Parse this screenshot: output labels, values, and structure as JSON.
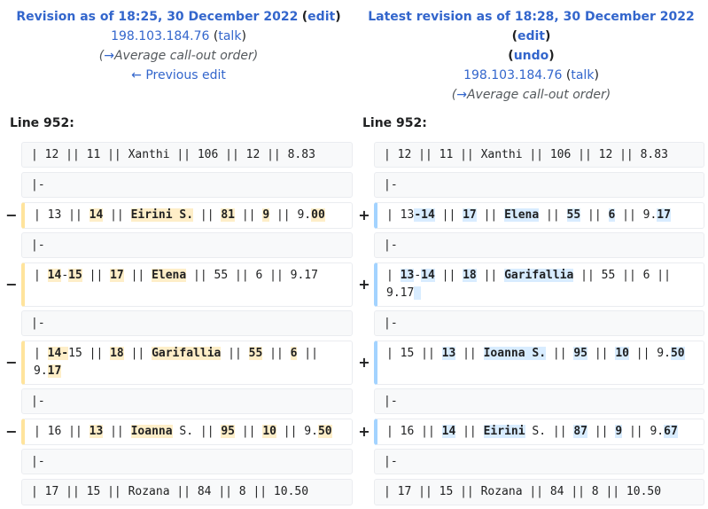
{
  "left_header": {
    "title": "Revision as of 18:25, 30 December 2022",
    "edit": "edit",
    "user": "198.103.184.76",
    "talk": "talk",
    "summary_arrow": "→",
    "summary": "Average call-out order",
    "prev_edit": "← Previous edit"
  },
  "right_header": {
    "title": "Latest revision as of 18:28, 30 December 2022",
    "edit": "edit",
    "undo": "undo",
    "user": "198.103.184.76",
    "talk": "talk",
    "summary_arrow": "→",
    "summary": "Average call-out order"
  },
  "line_left": "Line 952:",
  "line_right": "Line 952:",
  "markers": {
    "minus": "−",
    "plus": "+"
  },
  "rows": [
    {
      "type": "ctx",
      "left": "| 12 || 11 || Xanthi || 106 || 12 || 8.83",
      "right": "| 12 || 11 || Xanthi || 106 || 12 || 8.83"
    },
    {
      "type": "ctx",
      "left": "|-",
      "right": "|-"
    },
    {
      "type": "change",
      "left": [
        "| 13 || ",
        "14",
        " || ",
        "Eirini S.",
        " || ",
        "81",
        " || ",
        "9",
        " || 9.",
        "00"
      ],
      "right": [
        "| 13",
        "-14",
        " || ",
        "17",
        " || ",
        "Elena",
        " || ",
        "55",
        " || ",
        "6",
        " || 9.",
        "17"
      ]
    },
    {
      "type": "ctx",
      "left": "|-",
      "right": "|-"
    },
    {
      "type": "change",
      "left": [
        "| ",
        "14",
        "-",
        "15",
        " || ",
        "17",
        " || ",
        "Elena",
        " || 55 || 6 || 9.17"
      ],
      "right": [
        "| ",
        "13",
        "-",
        "14",
        " || ",
        "18",
        " || ",
        "Garifallia",
        " || 55 || 6 || 9.17",
        " "
      ]
    },
    {
      "type": "ctx",
      "left": "|-",
      "right": "|-"
    },
    {
      "type": "change",
      "left": [
        "| ",
        "14-",
        "15 || ",
        "18",
        " || ",
        "Garifallia",
        " || ",
        "55",
        " || ",
        "6",
        " || 9.",
        "17"
      ],
      "right": [
        "| 15 || ",
        "13",
        " || ",
        "Ioanna S.",
        " || ",
        "95",
        " || ",
        "10",
        " || 9.",
        "50"
      ]
    },
    {
      "type": "ctx",
      "left": "|-",
      "right": "|-"
    },
    {
      "type": "change",
      "left": [
        "| 16 || ",
        "13",
        " || ",
        "Ioanna",
        " S. || ",
        "95",
        " || ",
        "10",
        " || 9.",
        "50"
      ],
      "right": [
        "| 16 || ",
        "14",
        " || ",
        "Eirini",
        " S. || ",
        "87",
        " || ",
        "9",
        " || 9.",
        "67"
      ]
    },
    {
      "type": "ctx",
      "left": "|-",
      "right": "|-"
    },
    {
      "type": "ctx",
      "left": "| 17 || 15 || Rozana || 84 || 8 || 10.50",
      "right": "| 17 || 15 || Rozana || 84 || 8 || 10.50"
    }
  ]
}
